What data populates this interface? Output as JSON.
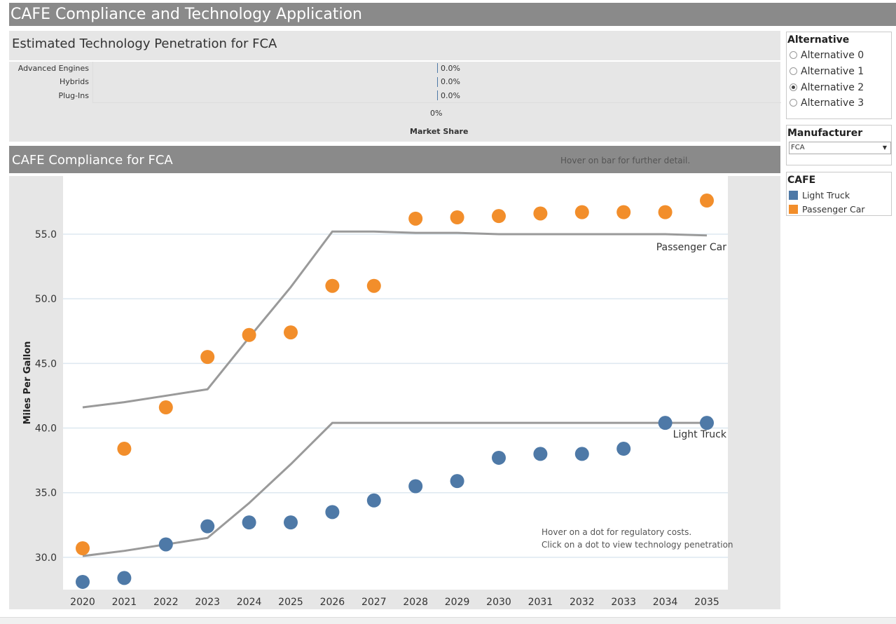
{
  "app": {
    "title": "CAFE Compliance and Technology Application"
  },
  "tech_penetration": {
    "title": "Estimated Technology Penetration for  FCA",
    "rows": [
      {
        "label": "Advanced Engines",
        "value": "0.0%"
      },
      {
        "label": "Hybrids",
        "value": "0.0%"
      },
      {
        "label": "Plug-Ins",
        "value": "0.0%"
      }
    ],
    "axis_tick": "0%",
    "axis_label": "Market Share"
  },
  "compliance": {
    "title": "CAFE Compliance for FCA",
    "hover_bar_hint": "Hover on bar for further detail.",
    "dot_hint_line1": "Hover on a dot for regulatory costs.",
    "dot_hint_line2": "Click on a dot to view technology penetration"
  },
  "alternative_panel": {
    "title": "Alternative",
    "options": [
      "Alternative 0",
      "Alternative 1",
      "Alternative 2",
      "Alternative 3"
    ],
    "selected_index": 2
  },
  "manufacturer_panel": {
    "title": "Manufacturer",
    "selected": "FCA"
  },
  "cafe_legend": {
    "title": "CAFE",
    "items": [
      {
        "label": "Light Truck",
        "color": "#4e79a7"
      },
      {
        "label": "Passenger Car",
        "color": "#f28e2b"
      }
    ]
  },
  "chart_data": {
    "type": "scatter",
    "title": "CAFE Compliance for FCA",
    "xlabel": "",
    "ylabel": "Miles Per Gallon",
    "ylim": [
      27.5,
      59.5
    ],
    "yticks": [
      30.0,
      35.0,
      40.0,
      45.0,
      50.0,
      55.0
    ],
    "ytick_labels": [
      "30.0",
      "35.0",
      "40.0",
      "45.0",
      "50.0",
      "55.0"
    ],
    "x": [
      2020,
      2021,
      2022,
      2023,
      2024,
      2025,
      2026,
      2027,
      2028,
      2029,
      2030,
      2031,
      2032,
      2033,
      2034,
      2035
    ],
    "series": [
      {
        "name": "Light Truck",
        "color": "#4e79a7",
        "values": [
          28.1,
          28.4,
          31.0,
          32.4,
          32.7,
          32.7,
          33.5,
          34.4,
          35.5,
          35.9,
          37.7,
          38.0,
          38.0,
          38.4,
          40.4,
          40.4
        ]
      },
      {
        "name": "Passenger Car",
        "color": "#f28e2b",
        "values": [
          30.7,
          38.4,
          41.6,
          45.5,
          47.2,
          47.4,
          51.0,
          51.0,
          56.2,
          56.3,
          56.4,
          56.6,
          56.7,
          56.7,
          56.7,
          57.6
        ]
      }
    ],
    "standards": [
      {
        "name": "Passenger Car",
        "label": "Passenger Car",
        "color": "#9a9a9a",
        "values": [
          41.6,
          42.0,
          42.5,
          43.0,
          47.0,
          50.9,
          55.2,
          55.2,
          55.1,
          55.1,
          55.0,
          55.0,
          55.0,
          55.0,
          55.0,
          54.9
        ]
      },
      {
        "name": "Light Truck",
        "label": "Light Truck",
        "color": "#9a9a9a",
        "values": [
          30.1,
          30.5,
          31.0,
          31.5,
          34.2,
          37.2,
          40.4,
          40.4,
          40.4,
          40.4,
          40.4,
          40.4,
          40.4,
          40.4,
          40.4,
          40.4
        ]
      }
    ]
  }
}
